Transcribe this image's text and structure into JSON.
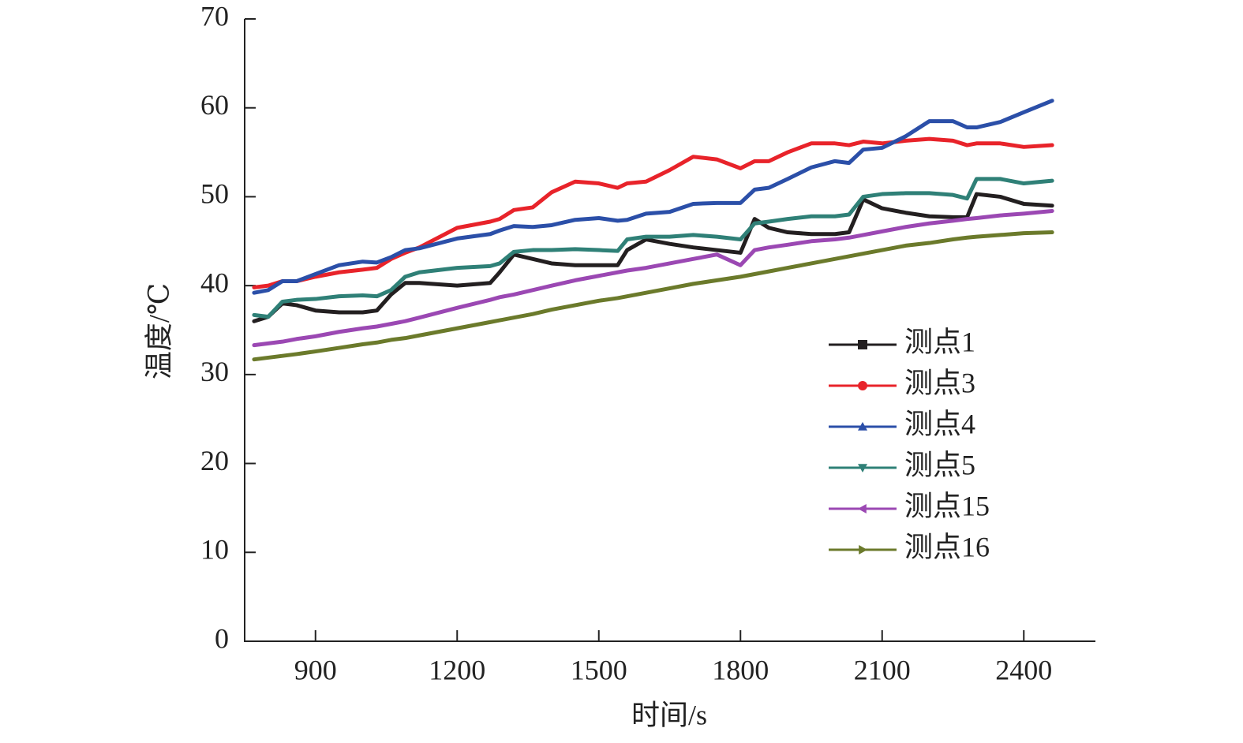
{
  "chart_data": {
    "type": "line",
    "xlabel": "时间/s",
    "ylabel": "温度/℃",
    "xlim": [
      750,
      2550
    ],
    "xticks": [
      900,
      1200,
      1500,
      1800,
      2100,
      2400
    ],
    "ylim": [
      0,
      70
    ],
    "yticks": [
      0,
      10,
      20,
      30,
      40,
      50,
      60,
      70
    ],
    "legend": "right",
    "x": [
      770,
      800,
      830,
      860,
      900,
      950,
      1000,
      1030,
      1060,
      1090,
      1120,
      1200,
      1270,
      1290,
      1320,
      1360,
      1400,
      1450,
      1500,
      1540,
      1560,
      1600,
      1650,
      1700,
      1750,
      1800,
      1830,
      1860,
      1900,
      1950,
      2000,
      2030,
      2060,
      2100,
      2150,
      2200,
      2250,
      2280,
      2300,
      2350,
      2400,
      2460
    ],
    "series": [
      {
        "name": "测点1",
        "color": "#231f20",
        "marker": "square",
        "values": [
          36,
          36.5,
          38,
          37.8,
          37.2,
          37,
          37,
          37.2,
          39,
          40.3,
          40.3,
          40,
          40.3,
          41.5,
          43.5,
          43,
          42.5,
          42.3,
          42.3,
          42.3,
          44,
          45.2,
          44.7,
          44.3,
          44,
          43.7,
          47.5,
          46.5,
          46,
          45.8,
          45.8,
          46,
          49.7,
          48.7,
          48.2,
          47.8,
          47.7,
          47.7,
          50.3,
          50,
          49.2,
          49
        ]
      },
      {
        "name": "测点3",
        "color": "#e8232a",
        "marker": "circle",
        "values": [
          39.8,
          40,
          40.5,
          40.5,
          41,
          41.5,
          41.8,
          42,
          43,
          43.7,
          44.3,
          46.5,
          47.2,
          47.5,
          48.5,
          48.8,
          50.5,
          51.7,
          51.5,
          51,
          51.5,
          51.7,
          53,
          54.5,
          54.2,
          53.2,
          54,
          54,
          55,
          56,
          56,
          55.8,
          56.2,
          56,
          56.3,
          56.5,
          56.3,
          55.8,
          56,
          56,
          55.6,
          55.8
        ]
      },
      {
        "name": "测点4",
        "color": "#2b4fa8",
        "marker": "triangle-up",
        "values": [
          39.2,
          39.5,
          40.5,
          40.5,
          41.3,
          42.3,
          42.7,
          42.6,
          43.2,
          44,
          44.2,
          45.3,
          45.8,
          46.2,
          46.7,
          46.6,
          46.8,
          47.4,
          47.6,
          47.3,
          47.4,
          48.1,
          48.3,
          49.2,
          49.3,
          49.3,
          50.8,
          51,
          52,
          53.3,
          54,
          53.8,
          55.3,
          55.5,
          56.8,
          58.5,
          58.5,
          57.8,
          57.8,
          58.4,
          59.5,
          60.8
        ]
      },
      {
        "name": "测点5",
        "color": "#2f8077",
        "marker": "triangle-down",
        "values": [
          36.7,
          36.5,
          38.2,
          38.4,
          38.5,
          38.8,
          38.9,
          38.8,
          39.5,
          41,
          41.5,
          42,
          42.2,
          42.5,
          43.8,
          44,
          44,
          44.1,
          44,
          43.9,
          45.2,
          45.5,
          45.5,
          45.7,
          45.5,
          45.2,
          47,
          47.2,
          47.5,
          47.8,
          47.8,
          48,
          50,
          50.3,
          50.4,
          50.4,
          50.2,
          49.8,
          52,
          52,
          51.5,
          51.8
        ]
      },
      {
        "name": "测点15",
        "color": "#9b48b3",
        "marker": "triangle-left",
        "values": [
          33.3,
          33.5,
          33.7,
          34,
          34.3,
          34.8,
          35.2,
          35.4,
          35.7,
          36,
          36.4,
          37.5,
          38.4,
          38.7,
          39,
          39.5,
          40,
          40.6,
          41.1,
          41.5,
          41.7,
          42,
          42.5,
          43,
          43.5,
          42.3,
          44,
          44.3,
          44.6,
          45,
          45.2,
          45.4,
          45.7,
          46.1,
          46.6,
          47,
          47.3,
          47.5,
          47.6,
          47.9,
          48.1,
          48.4
        ]
      },
      {
        "name": "测点16",
        "color": "#6b7a2b",
        "marker": "triangle-right",
        "values": [
          31.7,
          31.9,
          32.1,
          32.3,
          32.6,
          33,
          33.4,
          33.6,
          33.9,
          34.1,
          34.4,
          35.2,
          35.9,
          36.1,
          36.4,
          36.8,
          37.3,
          37.8,
          38.3,
          38.6,
          38.8,
          39.2,
          39.7,
          40.2,
          40.6,
          41,
          41.3,
          41.6,
          42,
          42.5,
          43,
          43.3,
          43.6,
          44,
          44.5,
          44.8,
          45.2,
          45.4,
          45.5,
          45.7,
          45.9,
          46
        ]
      }
    ]
  }
}
